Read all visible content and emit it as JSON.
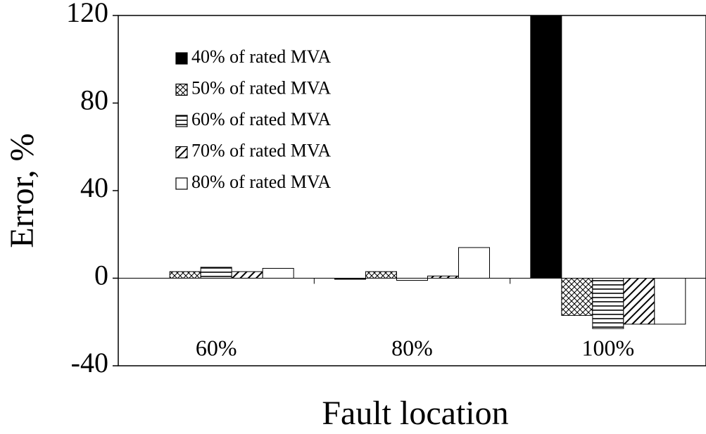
{
  "chart_data": {
    "type": "bar",
    "x_label": "Fault location",
    "y_label": "Error, %",
    "categories": [
      "60%",
      "80%",
      "100%"
    ],
    "series": [
      {
        "name": "40% of rated MVA",
        "color": "#000000",
        "pattern": "solid",
        "values": [
          0,
          -0.5,
          120
        ]
      },
      {
        "name": "50% of rated MVA",
        "color": "#000000",
        "pattern": "crosshatch",
        "values": [
          3,
          3,
          -17
        ]
      },
      {
        "name": "60% of rated MVA",
        "color": "#000000",
        "pattern": "horizontal",
        "values": [
          5,
          -1,
          -23
        ]
      },
      {
        "name": "70% of rated MVA",
        "color": "#000000",
        "pattern": "diagonal",
        "values": [
          3,
          1,
          -21
        ]
      },
      {
        "name": "80% of rated MVA",
        "color": "#000000",
        "pattern": "none",
        "values": [
          4.5,
          14,
          -21
        ]
      }
    ],
    "ylim": [
      -40,
      120
    ],
    "yticks": [
      -40,
      0,
      40,
      80,
      120
    ],
    "grid": false
  }
}
